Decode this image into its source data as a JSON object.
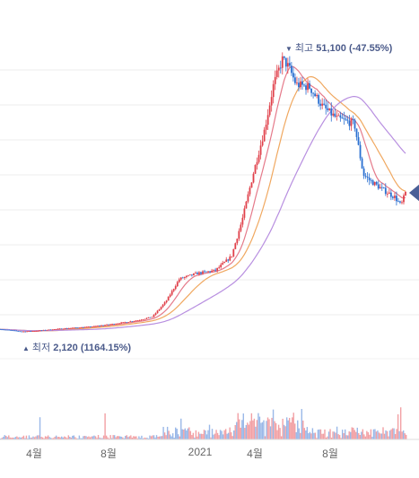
{
  "chart_data": {
    "type": "candlestick-with-volume",
    "x_ticks": [
      "4월",
      "8월",
      "2021",
      "4월",
      "8월"
    ],
    "high_annotation": {
      "label": "최고",
      "value": "51,100",
      "pct": "(-47.55%)"
    },
    "low_annotation": {
      "label": "최저",
      "value": "2,120",
      "pct": "(1164.15%)"
    },
    "price": {
      "min": 2120,
      "max": 51100,
      "last": 26800
    },
    "colors": {
      "up": "#e0404a",
      "down": "#2a6fd1",
      "ma_short": "#e57a8a",
      "ma_mid": "#f0a860",
      "ma_long": "#b88fe0",
      "vol_up": "#f2a0a4",
      "vol_down": "#9ab8e8",
      "grid": "#eeeeee",
      "marker": "#4a5f97"
    }
  }
}
